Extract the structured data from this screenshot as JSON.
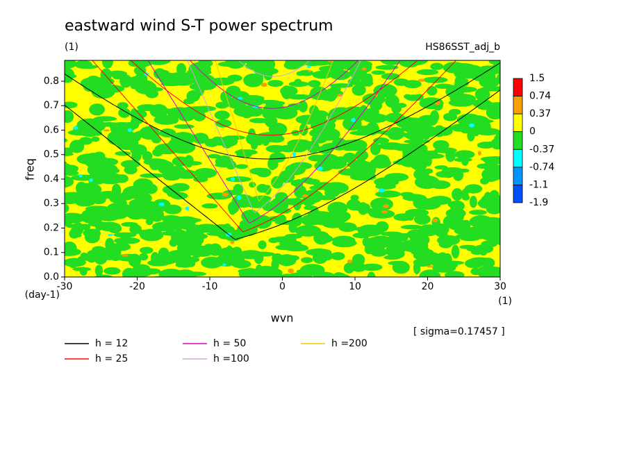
{
  "chart_data": {
    "type": "dispersion",
    "title": "eastward wind S-T power spectrum",
    "subtitle": "(1)",
    "run_label": "HS86SST_adj_b",
    "x_label": "wvn",
    "x_unit": "(1)",
    "y_label": "freq",
    "y_unit": "(day-1)",
    "annotation": "[ sigma=0.17457 ]",
    "xlim": [
      -30,
      30
    ],
    "xticks": [
      -30,
      -20,
      -10,
      0,
      10,
      20,
      30
    ],
    "ylim": [
      0,
      0.885
    ],
    "yticks": [
      {
        "value": 0,
        "label": "0.0"
      },
      0.1,
      0.2,
      0.3,
      0.4,
      0.5,
      0.6,
      0.7,
      0.8
    ],
    "colorbar": {
      "levels": [
        1.5,
        0.74,
        0.37,
        0,
        -0.37,
        -0.74,
        -1.1,
        -1.9
      ],
      "colors": [
        "#ff0000",
        "#f5a000",
        "#ffff00",
        "#22dd22",
        "#00ffff",
        "#0096ff",
        "#0050ff"
      ]
    },
    "series": [
      {
        "name": "h = 12",
        "h": 12,
        "color": "#000000"
      },
      {
        "name": "h = 25",
        "h": 25,
        "color": "#ff0000"
      },
      {
        "name": "h = 50",
        "h": 50,
        "color": "#e000c0"
      },
      {
        "name": "h =100",
        "h": 100,
        "color": "#d8a0e0"
      },
      {
        "name": "h =200",
        "h": 200,
        "color": "#f0c800"
      }
    ]
  }
}
